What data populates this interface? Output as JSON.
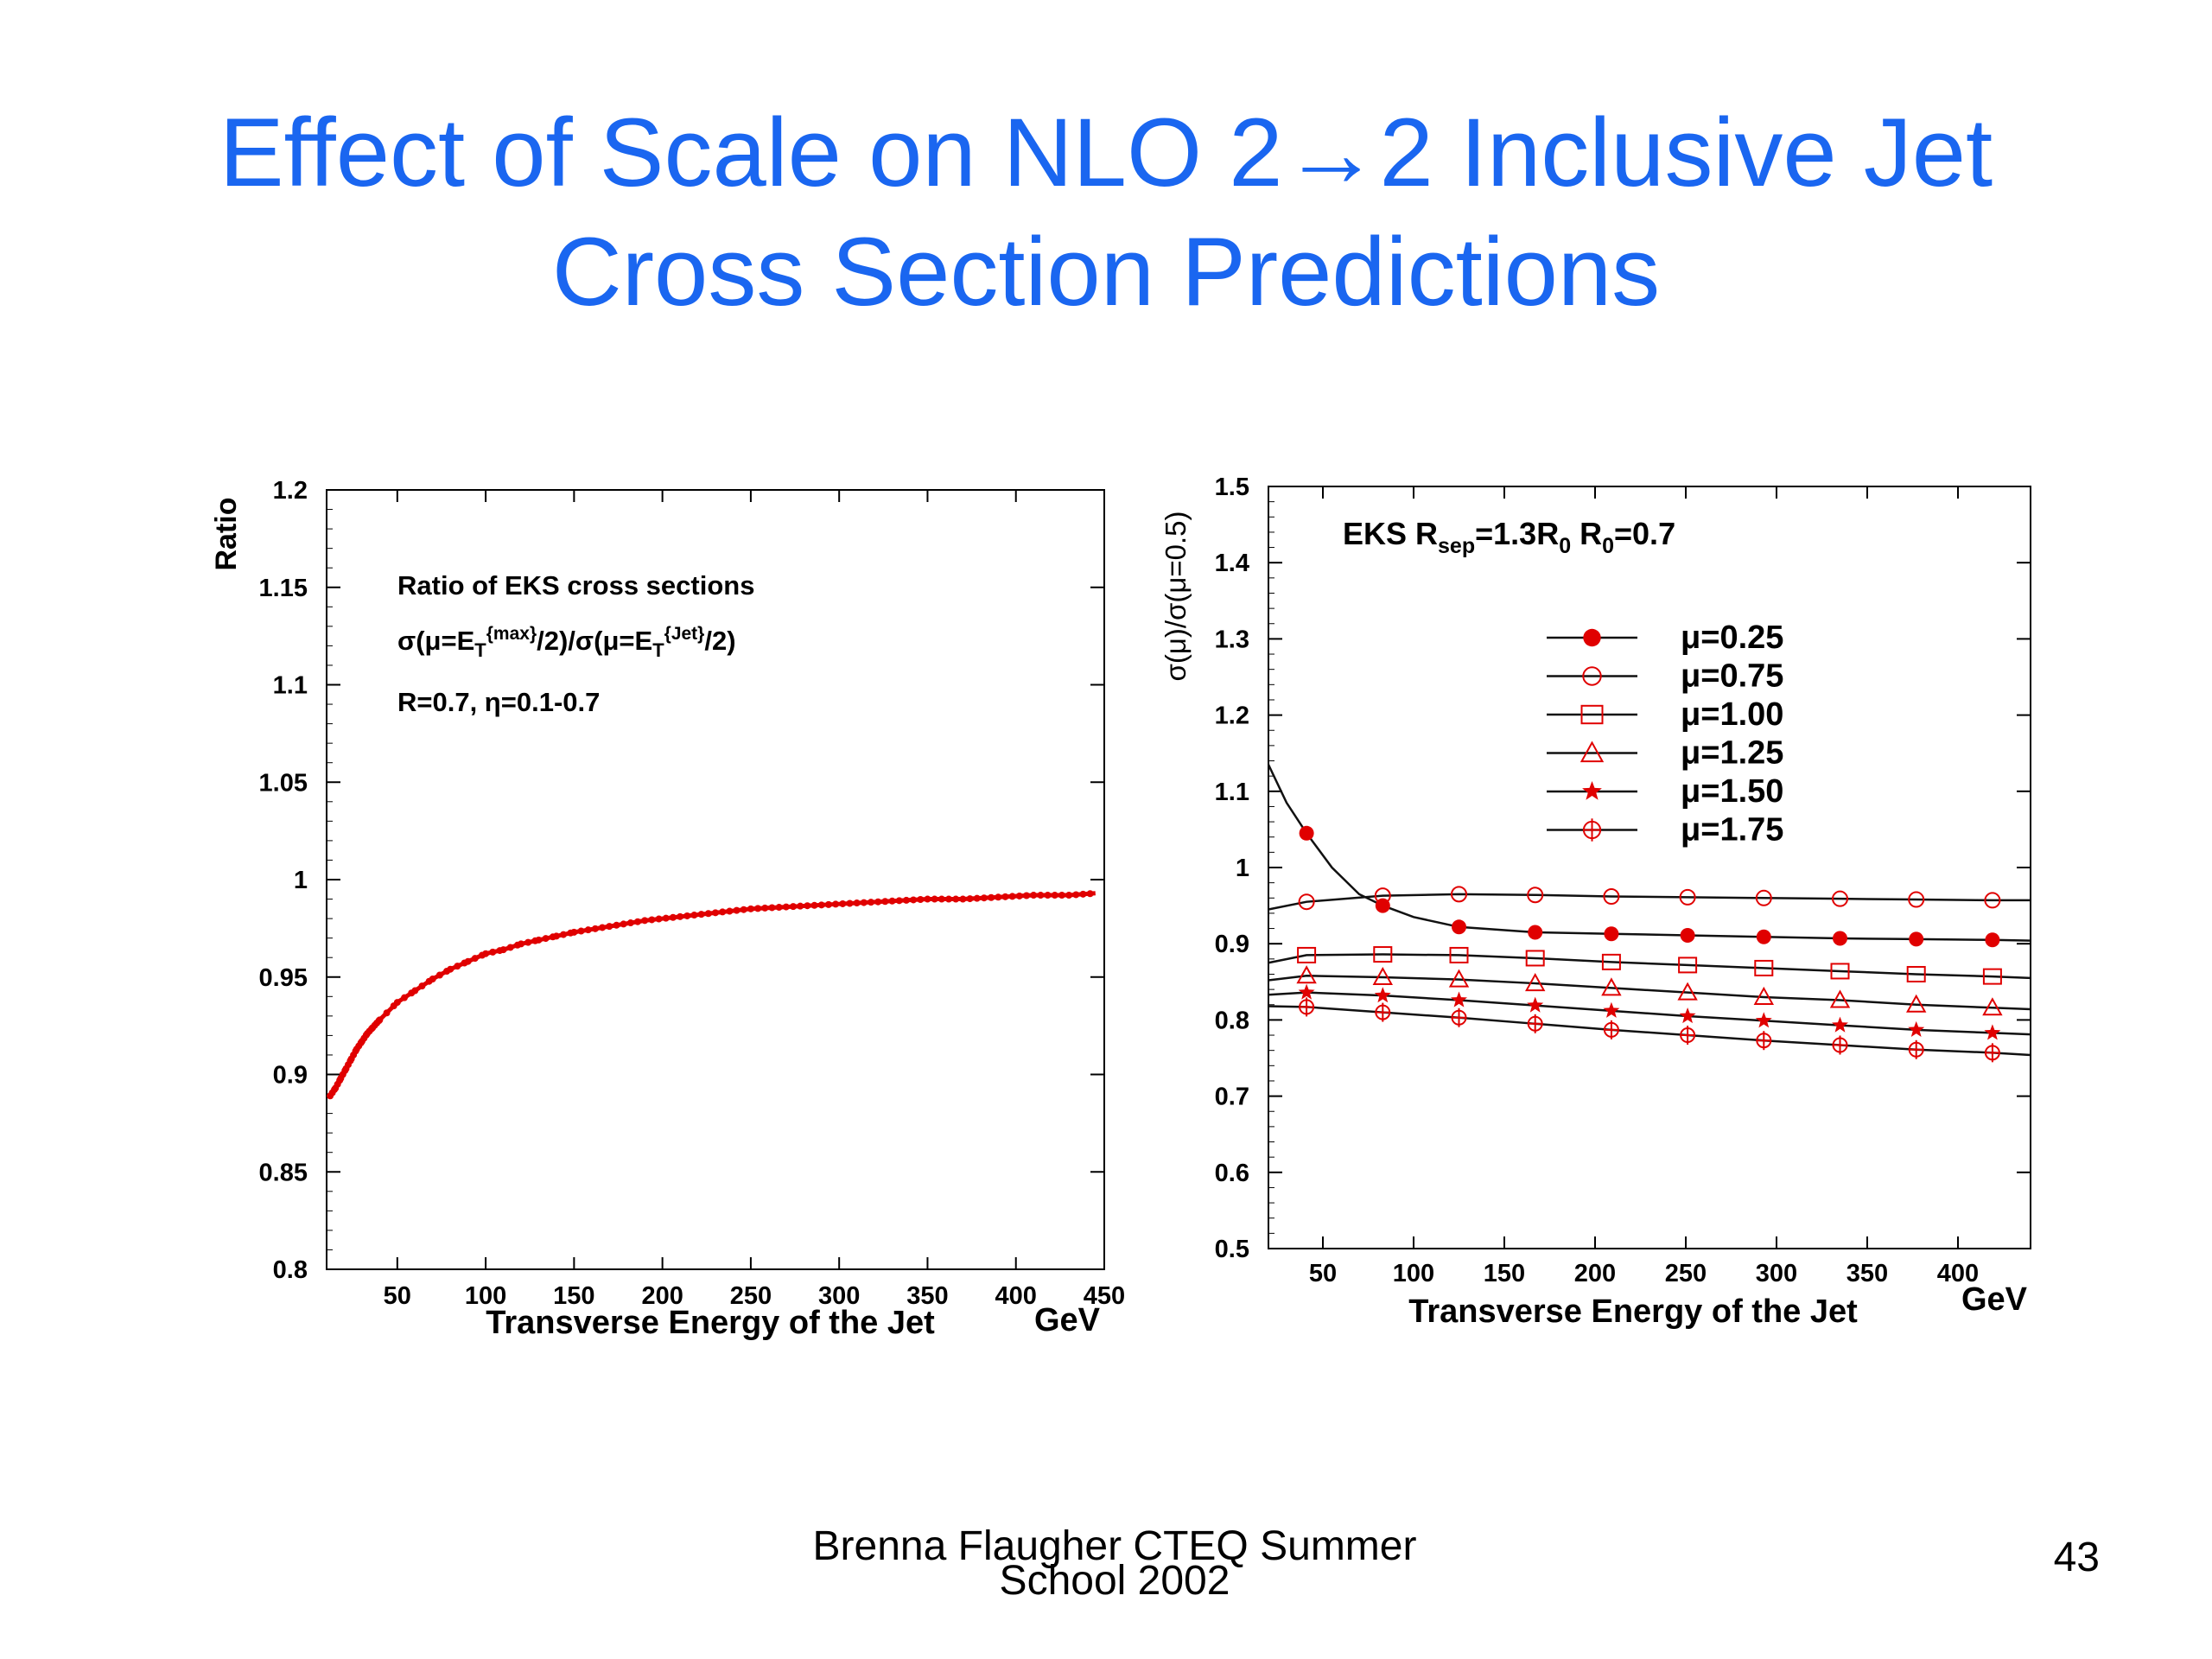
{
  "slide": {
    "title_line1": "Effect of Scale on NLO 2→2 Inclusive Jet",
    "title_line2": "Cross Section Predictions",
    "footer_line1": "Brenna Flaugher CTEQ Summer",
    "footer_line2": "School 2002",
    "page_number": "43",
    "title_color": "#1a66f0",
    "data_color": "#e00000"
  },
  "chart_data": [
    {
      "type": "line",
      "ylabel": "Ratio",
      "xlabel": "Transverse Energy of the Jet",
      "xunit": "GeV",
      "xlim": [
        10,
        450
      ],
      "ylim": [
        0.8,
        1.2
      ],
      "xticks": [
        "50",
        "100",
        "150",
        "200",
        "250",
        "300",
        "350",
        "400",
        "450"
      ],
      "yticks": [
        "0.8",
        "0.85",
        "0.9",
        "0.95",
        "1",
        "1.05",
        "1.1",
        "1.15",
        "1.2"
      ],
      "annotations": [
        "Ratio of EKS cross sections",
        "σ(μ=E_T^{max}/2)/σ(μ=E_T^{Jet}/2)",
        "R=0.7, η=0.1-0.7"
      ],
      "series": [
        {
          "x": [
            12,
            15,
            18,
            21,
            24,
            27,
            30,
            33,
            36,
            40,
            50,
            60,
            70,
            80,
            90,
            100,
            110,
            120,
            130,
            140,
            150,
            170,
            190,
            210,
            230,
            250,
            270,
            290,
            310,
            330,
            350,
            370,
            390,
            410,
            430,
            445
          ],
          "values": [
            0.889,
            0.893,
            0.898,
            0.903,
            0.908,
            0.913,
            0.917,
            0.921,
            0.924,
            0.928,
            0.937,
            0.943,
            0.949,
            0.954,
            0.958,
            0.962,
            0.964,
            0.967,
            0.969,
            0.971,
            0.973,
            0.976,
            0.979,
            0.981,
            0.983,
            0.985,
            0.986,
            0.987,
            0.988,
            0.989,
            0.99,
            0.99,
            0.991,
            0.992,
            0.992,
            0.993
          ]
        }
      ],
      "grid": false
    },
    {
      "type": "line",
      "ylabel": "σ(μ)/σ(μ=0.5)",
      "xlabel": "Transverse Energy of the Jet",
      "xunit": "GeV",
      "xlim": [
        20,
        440
      ],
      "ylim": [
        0.5,
        1.5
      ],
      "xticks": [
        "50",
        "100",
        "150",
        "200",
        "250",
        "300",
        "350",
        "400"
      ],
      "yticks": [
        "0.5",
        "0.6",
        "0.7",
        "0.8",
        "0.9",
        "1",
        "1.1",
        "1.2",
        "1.3",
        "1.4",
        "1.5"
      ],
      "annotation_parts": [
        "EKS  R",
        "sep",
        "=1.3R",
        "0",
        "  R",
        "0",
        "=0.7"
      ],
      "x": [
        41,
        83,
        125,
        167,
        209,
        251,
        293,
        335,
        377,
        419
      ],
      "series": [
        {
          "name": "μ=0.25",
          "marker": "filled-circle",
          "values": [
            1.045,
            0.95,
            0.922,
            0.915,
            0.913,
            0.911,
            0.909,
            0.907,
            0.906,
            0.905
          ],
          "curve_x": [
            20,
            30,
            41,
            55,
            70,
            83,
            100,
            125,
            167,
            209,
            251,
            293,
            335,
            377,
            419,
            440
          ],
          "curve_y": [
            1.135,
            1.085,
            1.045,
            1.0,
            0.965,
            0.95,
            0.935,
            0.922,
            0.915,
            0.913,
            0.911,
            0.909,
            0.907,
            0.906,
            0.905,
            0.904
          ]
        },
        {
          "name": "μ=0.75",
          "marker": "open-circle",
          "values": [
            0.955,
            0.963,
            0.965,
            0.964,
            0.962,
            0.961,
            0.96,
            0.959,
            0.958,
            0.957
          ],
          "curve_x": [
            20,
            41,
            83,
            125,
            167,
            209,
            251,
            293,
            335,
            377,
            419,
            440
          ],
          "curve_y": [
            0.945,
            0.955,
            0.963,
            0.965,
            0.964,
            0.962,
            0.961,
            0.96,
            0.959,
            0.958,
            0.957,
            0.957
          ]
        },
        {
          "name": "μ=1.00",
          "marker": "open-square",
          "values": [
            0.885,
            0.886,
            0.885,
            0.881,
            0.876,
            0.872,
            0.868,
            0.864,
            0.86,
            0.857
          ],
          "curve_x": [
            20,
            41,
            83,
            125,
            167,
            209,
            251,
            293,
            335,
            377,
            419,
            440
          ],
          "curve_y": [
            0.875,
            0.885,
            0.886,
            0.885,
            0.881,
            0.876,
            0.872,
            0.868,
            0.864,
            0.86,
            0.857,
            0.855
          ]
        },
        {
          "name": "μ=1.25",
          "marker": "open-triangle",
          "values": [
            0.858,
            0.856,
            0.853,
            0.848,
            0.842,
            0.836,
            0.83,
            0.826,
            0.82,
            0.816
          ],
          "curve_x": [
            20,
            41,
            83,
            125,
            167,
            209,
            251,
            293,
            335,
            377,
            419,
            440
          ],
          "curve_y": [
            0.852,
            0.858,
            0.856,
            0.853,
            0.848,
            0.842,
            0.836,
            0.83,
            0.826,
            0.82,
            0.816,
            0.814
          ]
        },
        {
          "name": "μ=1.50",
          "marker": "star",
          "values": [
            0.836,
            0.832,
            0.826,
            0.819,
            0.812,
            0.805,
            0.799,
            0.793,
            0.787,
            0.783
          ],
          "curve_x": [
            20,
            41,
            83,
            125,
            167,
            209,
            251,
            293,
            335,
            377,
            419,
            440
          ],
          "curve_y": [
            0.833,
            0.836,
            0.832,
            0.826,
            0.819,
            0.812,
            0.805,
            0.799,
            0.793,
            0.787,
            0.783,
            0.781
          ]
        },
        {
          "name": "μ=1.75",
          "marker": "circle-plus",
          "values": [
            0.817,
            0.81,
            0.803,
            0.795,
            0.787,
            0.78,
            0.773,
            0.767,
            0.761,
            0.757
          ],
          "curve_x": [
            20,
            41,
            83,
            125,
            167,
            209,
            251,
            293,
            335,
            377,
            419,
            440
          ],
          "curve_y": [
            0.818,
            0.817,
            0.81,
            0.803,
            0.795,
            0.787,
            0.78,
            0.773,
            0.767,
            0.761,
            0.757,
            0.754
          ]
        }
      ],
      "legend_position": "upper-center",
      "grid": false
    }
  ]
}
